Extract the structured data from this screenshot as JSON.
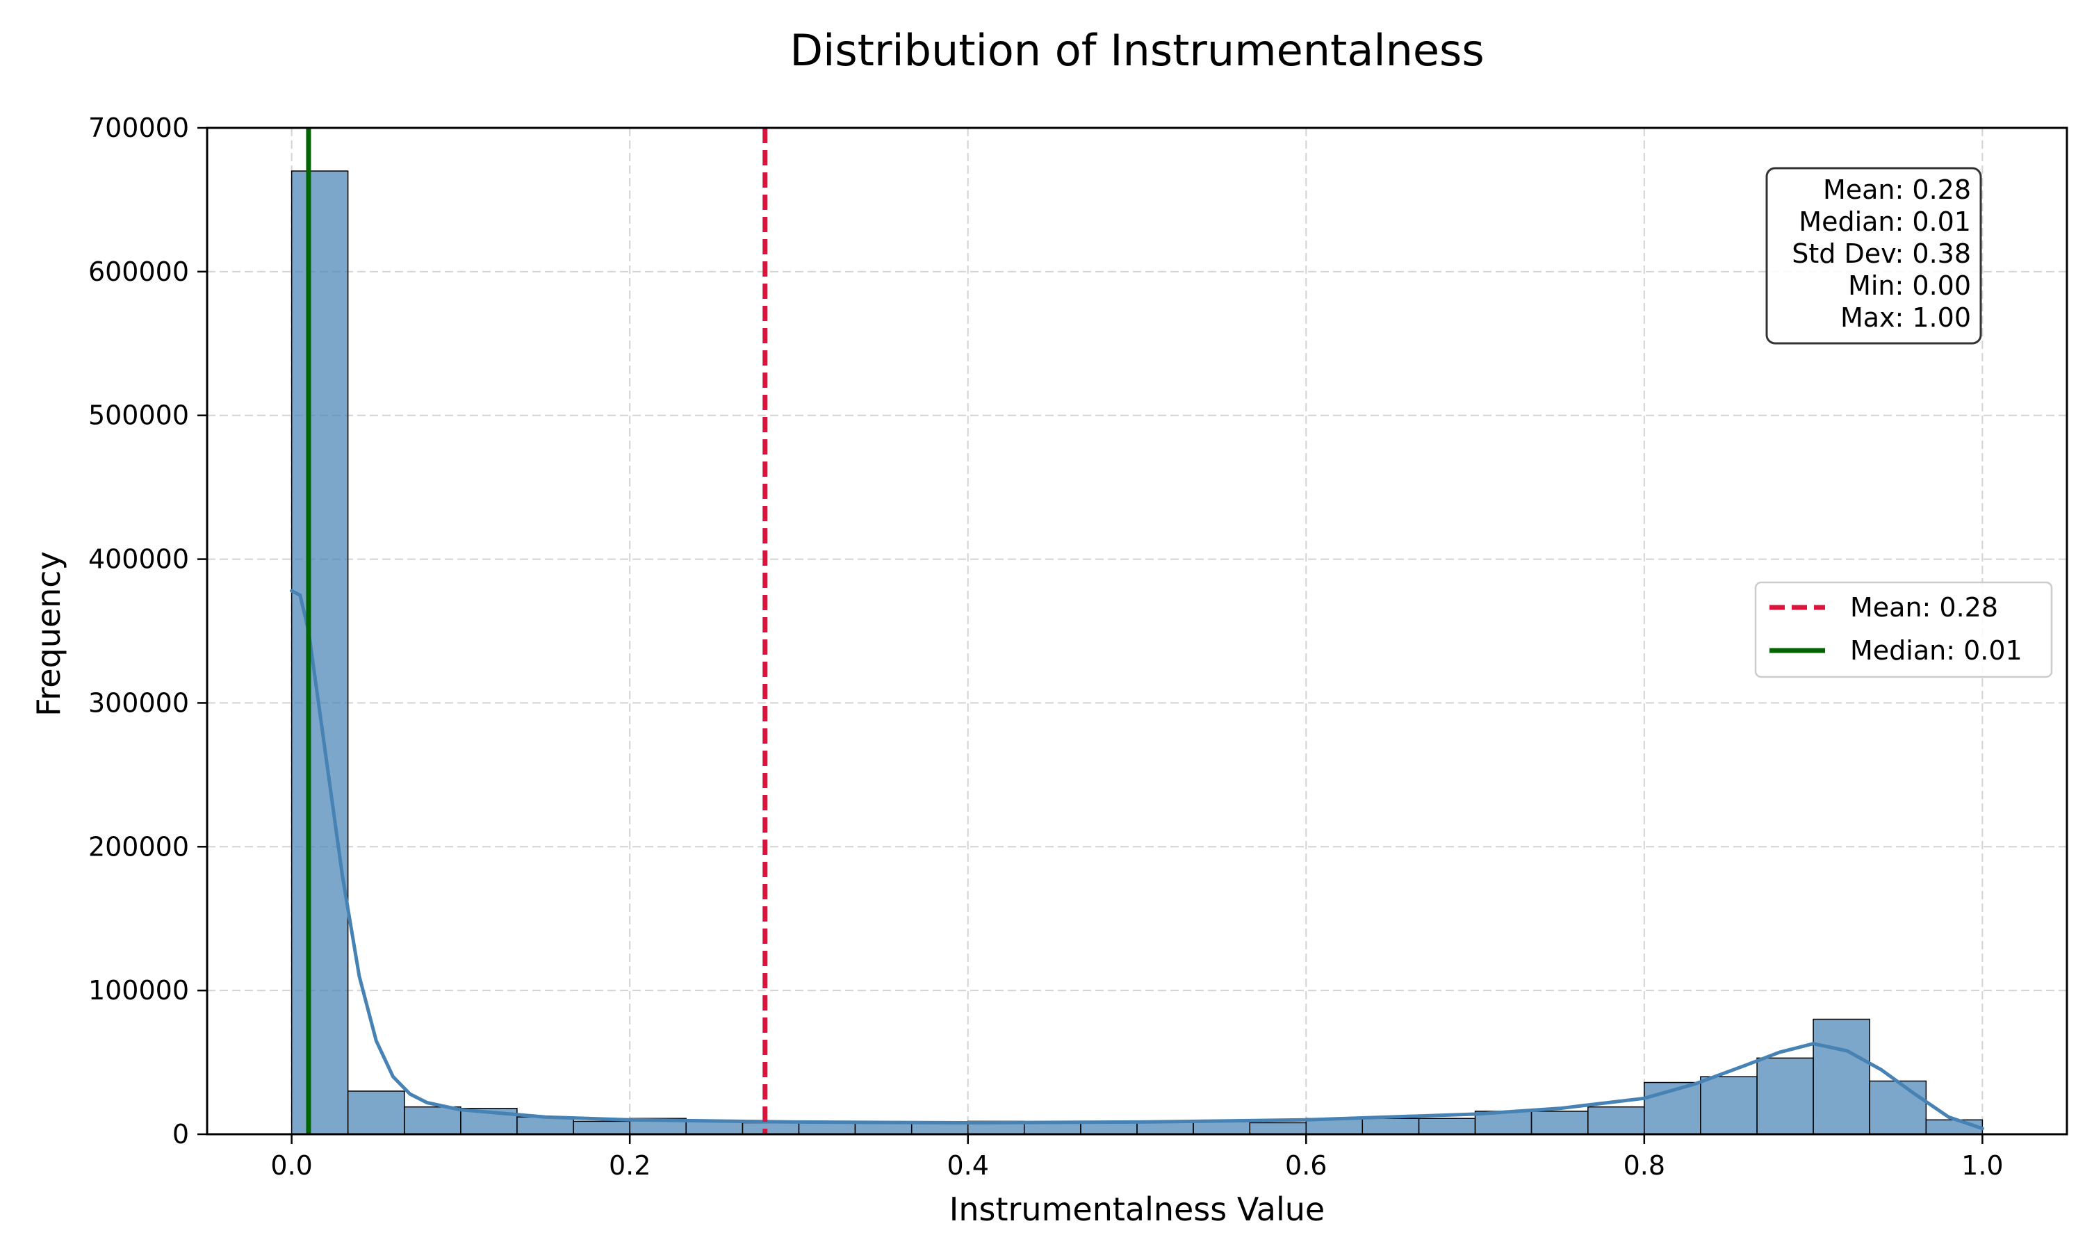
{
  "chart_data": {
    "type": "bar",
    "subtype": "histogram",
    "title": "Distribution of Instrumentalness",
    "xlabel": "Instrumentalness Value",
    "ylabel": "Frequency",
    "xlim": [
      -0.05,
      1.05
    ],
    "ylim": [
      0,
      700000
    ],
    "xticks": [
      0.0,
      0.2,
      0.4,
      0.6,
      0.8,
      1.0
    ],
    "xtick_labels": [
      "0.0",
      "0.2",
      "0.4",
      "0.6",
      "0.8",
      "1.0"
    ],
    "yticks": [
      0,
      100000,
      200000,
      300000,
      400000,
      500000,
      600000,
      700000
    ],
    "ytick_labels": [
      "0",
      "100000",
      "200000",
      "300000",
      "400000",
      "500000",
      "600000",
      "700000"
    ],
    "grid": true,
    "bin_edges": [
      0.0,
      0.0333,
      0.0667,
      0.1,
      0.1333,
      0.1667,
      0.2,
      0.2333,
      0.2667,
      0.3,
      0.3333,
      0.3667,
      0.4,
      0.4333,
      0.4667,
      0.5,
      0.5333,
      0.5667,
      0.6,
      0.6333,
      0.6667,
      0.7,
      0.7333,
      0.7667,
      0.8,
      0.8333,
      0.8667,
      0.9,
      0.9333,
      0.9667,
      1.0
    ],
    "counts": [
      670000,
      30000,
      19000,
      18000,
      12000,
      9000,
      11000,
      9000,
      8000,
      9000,
      8000,
      8000,
      9000,
      8000,
      8000,
      9000,
      9000,
      8000,
      11000,
      11000,
      11000,
      16000,
      16000,
      19000,
      36000,
      40000,
      53000,
      80000,
      37000,
      10000
    ],
    "bar_color": "#4682b4",
    "kde": {
      "color": "#4682b4",
      "x": [
        0.0,
        0.005,
        0.01,
        0.02,
        0.03,
        0.04,
        0.05,
        0.06,
        0.07,
        0.08,
        0.1,
        0.15,
        0.2,
        0.3,
        0.4,
        0.5,
        0.6,
        0.7,
        0.75,
        0.8,
        0.83,
        0.86,
        0.88,
        0.9,
        0.92,
        0.94,
        0.96,
        0.98,
        1.0
      ],
      "y": [
        378000,
        375000,
        350000,
        265000,
        180000,
        110000,
        65000,
        40000,
        28000,
        22000,
        17000,
        12000,
        10000,
        8500,
        8000,
        8500,
        10000,
        14000,
        18000,
        25000,
        35000,
        48000,
        57000,
        63000,
        58000,
        45000,
        28000,
        12000,
        4000
      ]
    },
    "mean_line": {
      "x": 0.28,
      "label": "Mean: 0.28",
      "color": "#dc143c",
      "style": "dashed"
    },
    "median_line": {
      "x": 0.01,
      "label": "Median: 0.01",
      "color": "#006400",
      "style": "solid"
    },
    "legend": {
      "placement": "center-right",
      "entries": [
        {
          "label": "Mean: 0.28",
          "color": "#dc143c",
          "style": "dashed"
        },
        {
          "label": "Median: 0.01",
          "color": "#006400",
          "style": "solid"
        }
      ]
    },
    "stats_box": {
      "placement": "top-right",
      "lines": [
        "Mean: 0.28",
        "Median: 0.01",
        "Std Dev: 0.38",
        "Min: 0.00",
        "Max: 1.00"
      ]
    }
  }
}
